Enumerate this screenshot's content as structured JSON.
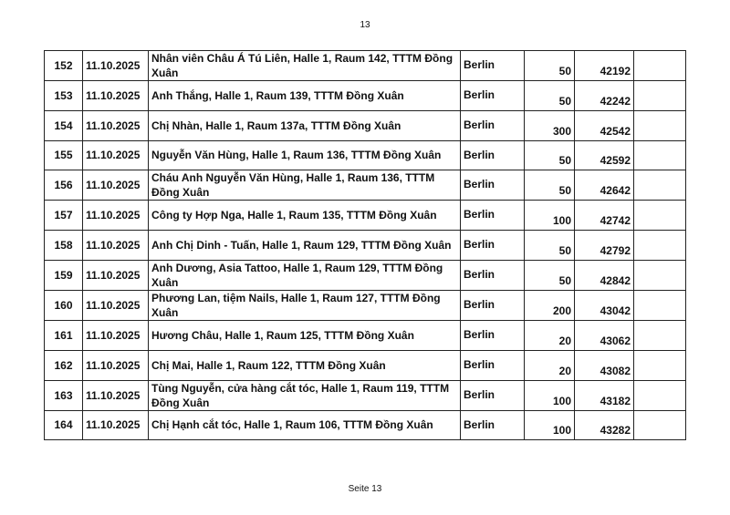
{
  "page_number": "13",
  "footer": "Seite 13",
  "rows": [
    {
      "no": "152",
      "date": "11.10.2025",
      "desc": "Nhân viên Châu Á Tú Liên, Halle 1,  Raum 142, TTTM Đồng Xuân",
      "city": "Berlin",
      "amount": "50",
      "total": "42192"
    },
    {
      "no": "153",
      "date": "11.10.2025",
      "desc": "Anh Thắng, Halle 1,  Raum 139, TTTM Đồng Xuân",
      "city": "Berlin",
      "amount": "50",
      "total": "42242"
    },
    {
      "no": "154",
      "date": "11.10.2025",
      "desc": "Chị Nhàn, Halle 1,  Raum 137a, TTTM Đồng Xuân",
      "city": "Berlin",
      "amount": "300",
      "total": "42542"
    },
    {
      "no": "155",
      "date": "11.10.2025",
      "desc": "Nguyễn Văn Hùng, Halle 1,  Raum 136, TTTM Đồng Xuân",
      "city": "Berlin",
      "amount": "50",
      "total": "42592"
    },
    {
      "no": "156",
      "date": "11.10.2025",
      "desc": "Cháu Anh Nguyễn Văn Hùng, Halle 1,  Raum 136, TTTM Đồng Xuân",
      "city": "Berlin",
      "amount": "50",
      "total": "42642"
    },
    {
      "no": "157",
      "date": "11.10.2025",
      "desc": "Công ty Hợp Nga, Halle 1,  Raum 135, TTTM Đồng Xuân",
      "city": "Berlin",
      "amount": "100",
      "total": "42742"
    },
    {
      "no": "158",
      "date": "11.10.2025",
      "desc": "Anh Chị Dinh - Tuấn, Halle 1,  Raum 129, TTTM Đồng Xuân",
      "city": "Berlin",
      "amount": "50",
      "total": "42792"
    },
    {
      "no": "159",
      "date": "11.10.2025",
      "desc": "Anh Dương, Asia Tattoo, Halle 1,  Raum 129, TTTM Đồng Xuân",
      "city": "Berlin",
      "amount": "50",
      "total": "42842"
    },
    {
      "no": "160",
      "date": "11.10.2025",
      "desc": "Phương Lan, tiệm Nails, Halle 1,  Raum 127, TTTM Đồng Xuân",
      "city": "Berlin",
      "amount": "200",
      "total": "43042"
    },
    {
      "no": "161",
      "date": "11.10.2025",
      "desc": "Hương Châu, Halle 1,  Raum 125, TTTM Đồng Xuân",
      "city": "Berlin",
      "amount": "20",
      "total": "43062"
    },
    {
      "no": "162",
      "date": "11.10.2025",
      "desc": "Chị Mai, Halle 1,  Raum 122, TTTM Đồng Xuân",
      "city": "Berlin",
      "amount": "20",
      "total": "43082"
    },
    {
      "no": "163",
      "date": "11.10.2025",
      "desc": "Tùng Nguyễn, cửa hàng cắt tóc, Halle 1,  Raum 119, TTTM Đồng Xuân",
      "city": "Berlin",
      "amount": "100",
      "total": "43182"
    },
    {
      "no": "164",
      "date": "11.10.2025",
      "desc": "Chị Hạnh cắt tóc, Halle 1,  Raum 106, TTTM Đồng Xuân",
      "city": "Berlin",
      "amount": "100",
      "total": "43282"
    }
  ]
}
